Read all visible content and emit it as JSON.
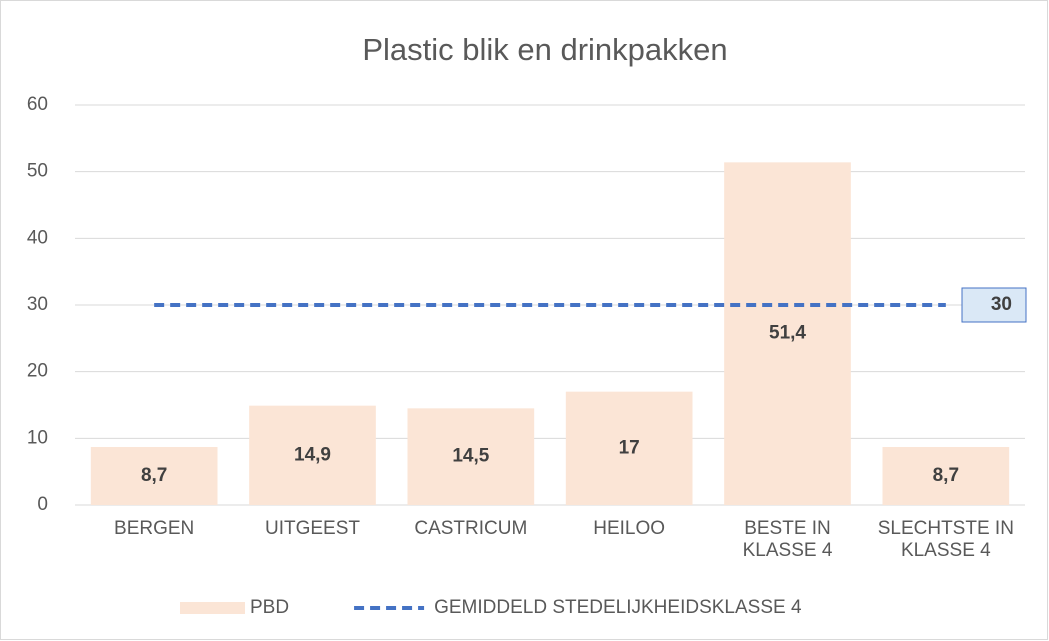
{
  "chart_data": {
    "type": "bar",
    "title": "Plastic blik en drinkpakken",
    "categories": [
      "BERGEN",
      "UITGEEST",
      "CASTRICUM",
      "HEILOO",
      "BESTE IN KLASSE 4",
      "SLECHTSTE IN KLASSE 4"
    ],
    "series": [
      {
        "name": "PBD",
        "type": "bar",
        "color": "#fbe5d6",
        "values": [
          8.7,
          14.9,
          14.5,
          17,
          51.4,
          8.7
        ],
        "value_labels": [
          "8,7",
          "14,9",
          "14,5",
          "17",
          "51,4",
          "8,7"
        ]
      },
      {
        "name": "GEMIDDELD STEDELIJKHEIDSKLASSE 4",
        "type": "line",
        "color": "#4472c4",
        "values": [
          30,
          30,
          30,
          30,
          30,
          30
        ]
      }
    ],
    "ylim": [
      0,
      60
    ],
    "yticks": [
      0,
      10,
      20,
      30,
      40,
      50,
      60
    ],
    "grid": true,
    "legend": "bottom"
  }
}
